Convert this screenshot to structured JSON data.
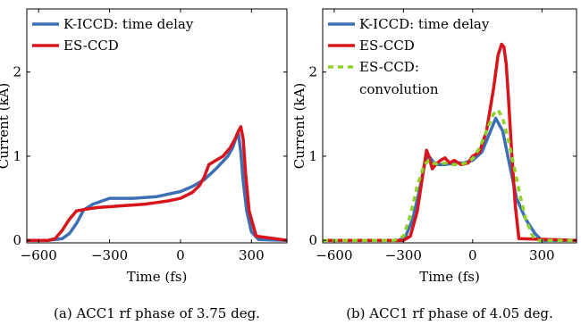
{
  "colors": {
    "kiccd": "#3d6fb5",
    "escd": "#d8141c",
    "conv": "#8fd22a",
    "axis": "#000000"
  },
  "chart_data": [
    {
      "type": "line",
      "caption": "(a) ACC1 rf phase of 3.75 deg.",
      "xlabel": "Time (fs)",
      "ylabel": "Current (kA)",
      "xlim": [
        -650,
        450
      ],
      "ylim": [
        -0.03,
        2.75
      ],
      "xticks": [
        "−600",
        "−300",
        "0",
        "300"
      ],
      "xtick_values": [
        -600,
        -300,
        0,
        300
      ],
      "yticks": [
        "0",
        "1",
        "2"
      ],
      "ytick_values": [
        0,
        1,
        2
      ],
      "legend": "top-left",
      "series": [
        {
          "name": "K-ICCD: time delay",
          "color_key": "kiccd",
          "style": "solid",
          "x": [
            -650,
            -560,
            -500,
            -470,
            -440,
            -410,
            -370,
            -300,
            -200,
            -100,
            0,
            50,
            100,
            150,
            200,
            220,
            235,
            245,
            255,
            265,
            280,
            300,
            330,
            450
          ],
          "y": [
            0,
            0,
            0.02,
            0.08,
            0.2,
            0.36,
            0.43,
            0.5,
            0.5,
            0.52,
            0.58,
            0.64,
            0.72,
            0.85,
            1.0,
            1.1,
            1.22,
            1.26,
            1.05,
            0.7,
            0.35,
            0.1,
            0.01,
            0
          ]
        },
        {
          "name": "ES-CCD",
          "color_key": "escd",
          "style": "solid",
          "x": [
            -650,
            -560,
            -530,
            -500,
            -470,
            -440,
            -400,
            -350,
            -300,
            -250,
            -200,
            -150,
            -100,
            -50,
            0,
            50,
            80,
            100,
            120,
            150,
            180,
            210,
            230,
            245,
            255,
            265,
            275,
            290,
            320,
            450
          ],
          "y": [
            0,
            0,
            0.02,
            0.12,
            0.25,
            0.35,
            0.37,
            0.39,
            0.4,
            0.41,
            0.42,
            0.43,
            0.45,
            0.47,
            0.5,
            0.57,
            0.65,
            0.75,
            0.9,
            0.95,
            1.0,
            1.1,
            1.2,
            1.3,
            1.35,
            1.2,
            0.8,
            0.35,
            0.05,
            0
          ]
        }
      ]
    },
    {
      "type": "line",
      "caption": "(b) ACC1 rf phase of 4.05 deg.",
      "xlabel": "Time (fs)",
      "ylabel": "Current (kA)",
      "xlim": [
        -650,
        450
      ],
      "ylim": [
        -0.03,
        2.75
      ],
      "xticks": [
        "−600",
        "−300",
        "0",
        "300"
      ],
      "xtick_values": [
        -600,
        -300,
        0,
        300
      ],
      "yticks": [
        "0",
        "1",
        "2"
      ],
      "ytick_values": [
        0,
        1,
        2
      ],
      "legend": "top-left",
      "series": [
        {
          "name": "K-ICCD: time delay",
          "color_key": "kiccd",
          "style": "solid",
          "x": [
            -650,
            -320,
            -290,
            -260,
            -230,
            -205,
            -190,
            -170,
            -150,
            -120,
            -80,
            -40,
            0,
            40,
            70,
            100,
            130,
            160,
            190,
            230,
            270,
            300,
            450
          ],
          "y": [
            0,
            0,
            0.05,
            0.25,
            0.6,
            0.95,
            1.0,
            0.93,
            0.9,
            0.9,
            0.92,
            0.92,
            0.95,
            1.05,
            1.25,
            1.45,
            1.3,
            0.9,
            0.5,
            0.25,
            0.08,
            0,
            0
          ]
        },
        {
          "name": "ES-CCD",
          "color_key": "escd",
          "style": "solid",
          "x": [
            -650,
            -300,
            -270,
            -240,
            -215,
            -200,
            -190,
            -175,
            -160,
            -140,
            -120,
            -100,
            -80,
            -50,
            -20,
            0,
            30,
            60,
            90,
            110,
            125,
            135,
            145,
            155,
            170,
            185,
            200,
            450
          ],
          "y": [
            0,
            0,
            0.05,
            0.35,
            0.8,
            1.07,
            1.0,
            0.85,
            0.9,
            0.95,
            0.98,
            0.92,
            0.95,
            0.9,
            0.92,
            1.0,
            1.05,
            1.3,
            1.8,
            2.2,
            2.33,
            2.3,
            2.1,
            1.7,
            1.0,
            0.4,
            0.02,
            0
          ]
        },
        {
          "name": "ES-CCD: convolution",
          "legend_lines": [
            "ES-CCD:",
            "convolution"
          ],
          "color_key": "conv",
          "style": "dashed",
          "x": [
            -650,
            -340,
            -300,
            -270,
            -240,
            -210,
            -190,
            -170,
            -150,
            -120,
            -90,
            -60,
            -30,
            0,
            30,
            60,
            90,
            110,
            130,
            150,
            170,
            200,
            230,
            260,
            280,
            450
          ],
          "y": [
            0,
            0,
            0.05,
            0.3,
            0.65,
            0.9,
            0.95,
            0.92,
            0.9,
            0.92,
            0.9,
            0.9,
            0.92,
            0.97,
            1.1,
            1.3,
            1.5,
            1.55,
            1.45,
            1.25,
            1.0,
            0.6,
            0.25,
            0.05,
            0,
            0
          ]
        }
      ]
    }
  ]
}
